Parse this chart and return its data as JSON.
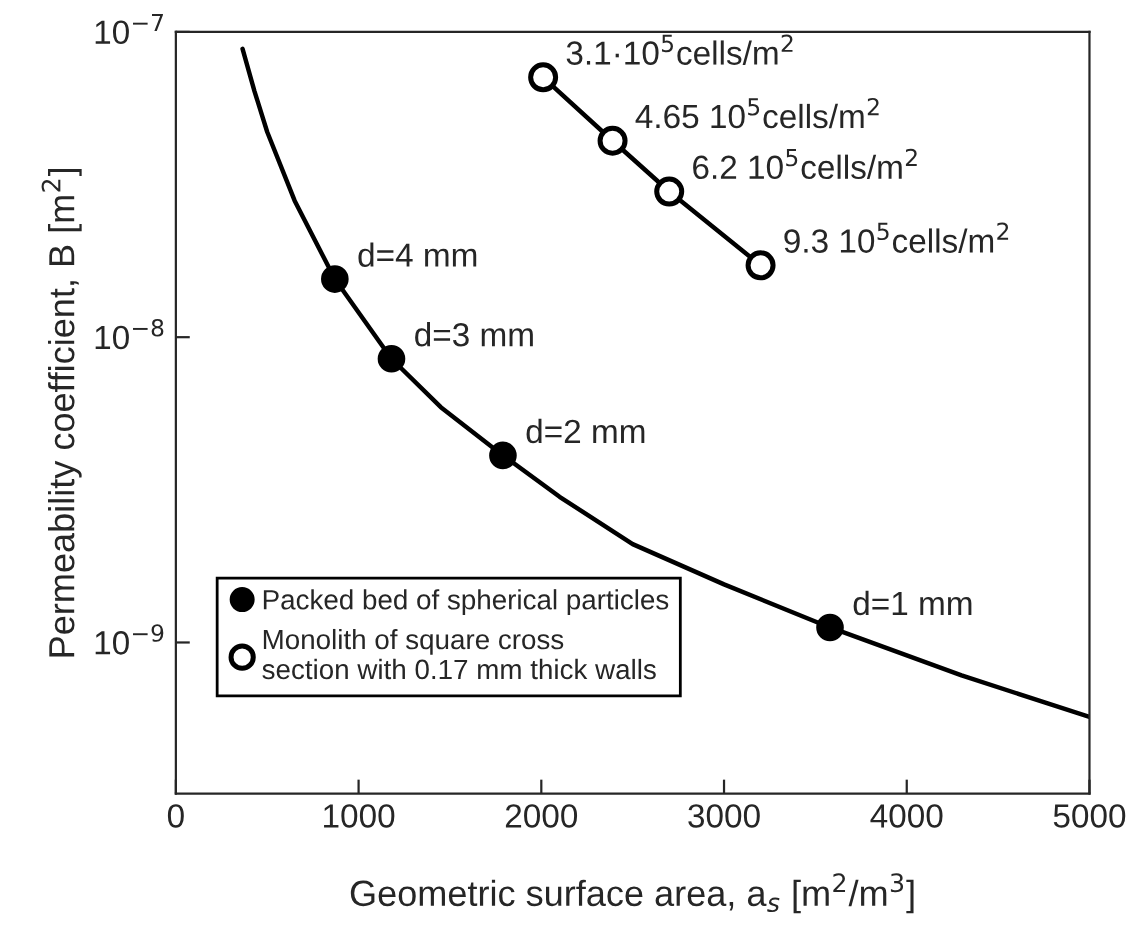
{
  "chart_data": {
    "type": "line",
    "xlabel": "Geometric surface area, a$_{s}$ [m$^{2}$/m$^{3}$]",
    "ylabel": "Permeability coefficient, B [m$^{2}$]",
    "log": "y",
    "xlim": [
      0,
      5000
    ],
    "xticks": [
      0,
      1000,
      2000,
      3000,
      4000,
      5000
    ],
    "ylim": [
      3.2e-10,
      1e-07
    ],
    "yticks": [
      {
        "value": 1e-09,
        "label": "10$^{−9}$"
      },
      {
        "value": 1e-08,
        "label": "10$^{−8}$"
      },
      {
        "value": 1e-07,
        "label": "10$^{−7}$"
      }
    ],
    "grid": false,
    "legend": "bottom left",
    "series": [
      {
        "color": "#000000",
        "marker": "none",
        "x": [
          365,
          430,
          500,
          650,
          870,
          1180,
          1450,
          1790,
          2100,
          2500,
          3000,
          3580,
          4300,
          5000
        ],
        "values": [
          8.8e-08,
          6.4e-08,
          4.7e-08,
          2.8e-08,
          1.55e-08,
          8.5e-09,
          5.9e-09,
          4.1e-09,
          3e-09,
          2.1e-09,
          1.55e-09,
          1.12e-09,
          7.8e-10,
          5.7e-10
        ]
      },
      {
        "type": "scatter",
        "name": "Packed bed of spherical particles",
        "color": "#000000",
        "marker": "circle",
        "x": [
          870,
          1180,
          1790,
          3580
        ],
        "values": [
          1.55e-08,
          8.5e-09,
          4.1e-09,
          1.12e-09
        ]
      },
      {
        "type": "line",
        "name": "Monolith of square cross\nsection with 0.17 mm thick walls",
        "color": "#000000",
        "marker": "circle",
        "x": [
          2010,
          2390,
          2700,
          3200
        ],
        "values": [
          7.1e-08,
          4.4e-08,
          3e-08,
          1.72e-08
        ]
      }
    ],
    "annotations": [
      {
        "text": "d=4 mm",
        "x": 870,
        "y": 1.55e-08
      },
      {
        "text": "d=3 mm",
        "x": 1180,
        "y": 8.5e-09
      },
      {
        "text": "d=2 mm",
        "x": 1790,
        "y": 4.1e-09
      },
      {
        "text": "d=1 mm",
        "x": 3580,
        "y": 1.12e-09
      },
      {
        "text": "3.1·10$^{5}$cells/m$^{2}$",
        "x": 2010,
        "y": 7.1e-08
      },
      {
        "text": "4.65 10$^{5}$cells/m$^{2}$",
        "x": 2390,
        "y": 4.4e-08
      },
      {
        "text": "6.2 10$^{5}$cells/m$^{2}$",
        "x": 2700,
        "y": 3e-08
      },
      {
        "text": "9.3 10$^{5}$cells/m$^{2}$",
        "x": 3200,
        "y": 1.72e-08
      }
    ]
  }
}
